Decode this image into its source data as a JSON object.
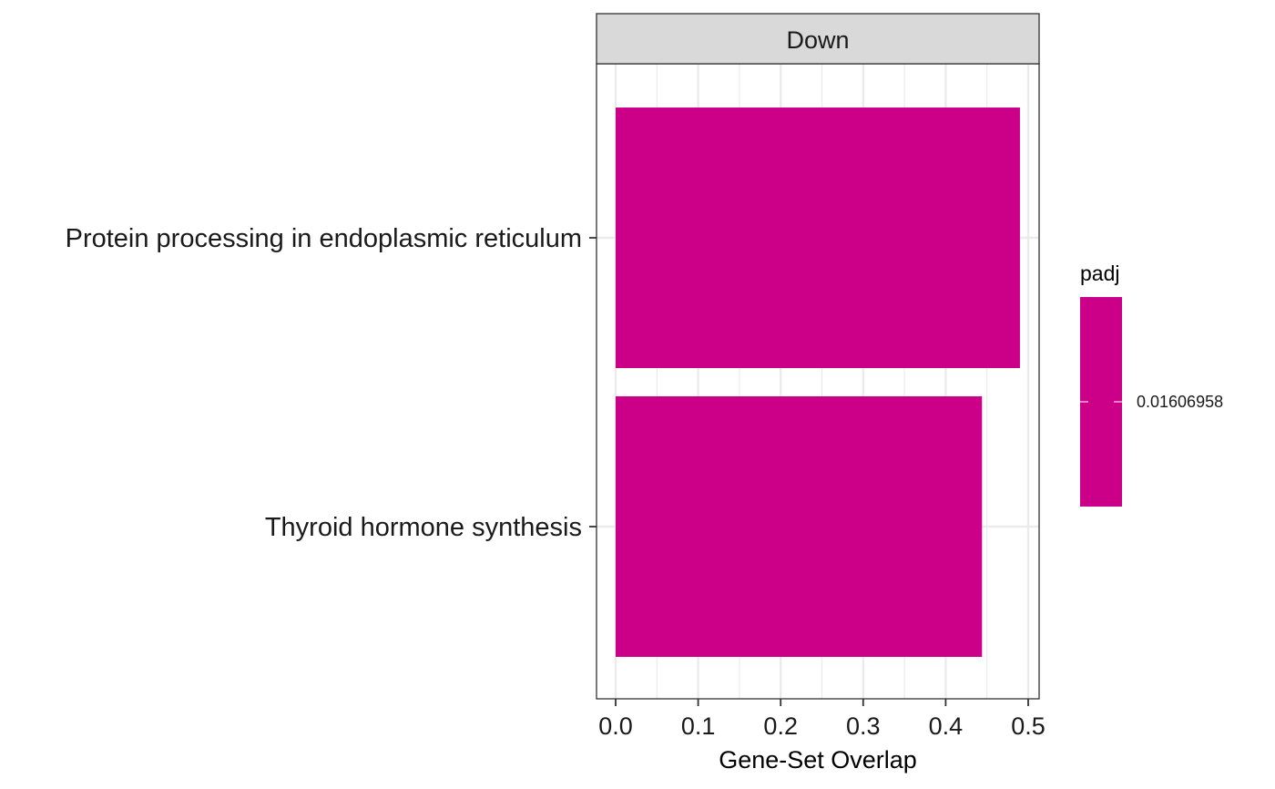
{
  "chart_data": {
    "type": "bar",
    "orientation": "horizontal",
    "facet": "Down",
    "categories": [
      "Protein processing in endoplasmic reticulum",
      "Thyroid hormone synthesis"
    ],
    "values": [
      0.49,
      0.444
    ],
    "xlabel": "Gene-Set Overlap",
    "ylabel": "",
    "xlim": [
      0,
      0.5
    ],
    "xticks": [
      "0.0",
      "0.1",
      "0.2",
      "0.3",
      "0.4",
      "0.5"
    ],
    "grid": true,
    "legend": {
      "title": "padj",
      "position": "right",
      "labels": [
        "0.01606958"
      ]
    },
    "bar_color": "#CC0088",
    "strip_color": "#D9D9D9",
    "grid_color": "#EBEBEB"
  }
}
